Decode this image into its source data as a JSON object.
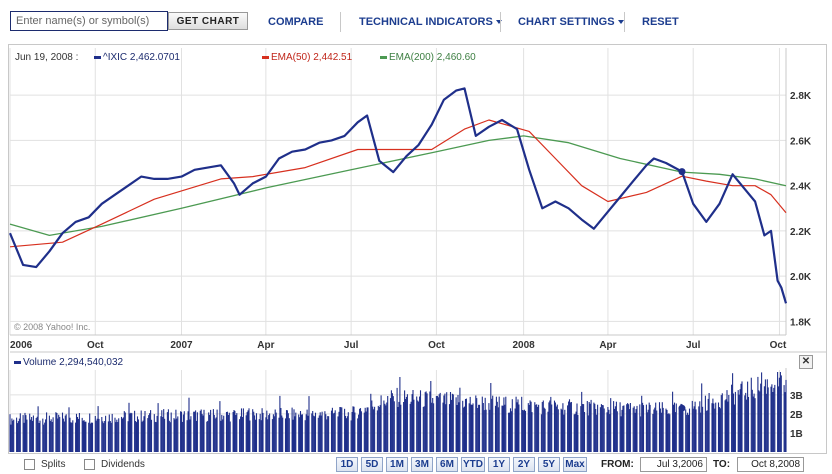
{
  "toolbar": {
    "symbol_placeholder": "Enter name(s) or symbol(s)",
    "get_chart_label": "GET CHART",
    "compare_label": "COMPARE",
    "technical_indicators_label": "TECHNICAL INDICATORS",
    "chart_settings_label": "CHART SETTINGS",
    "reset_label": "RESET"
  },
  "legend": {
    "date": "Jun 19, 2008 :",
    "symbol": "^IXIC",
    "symbol_value": "2,462.0701",
    "ema50_label": "EMA(50)",
    "ema50_value": "2,442.51",
    "ema200_label": "EMA(200)",
    "ema200_value": "2,460.60"
  },
  "colors": {
    "price": "#1f2f8a",
    "ema50": "#d7301f",
    "ema200": "#4c9a52",
    "volume": "#1f2f8a",
    "grid": "#e1e1e1"
  },
  "copyright": "© 2008 Yahoo! Inc.",
  "volume": {
    "label": "Volume",
    "value": "2,294,540,032",
    "close_icon": "close-icon"
  },
  "bottom": {
    "splits_label": "Splits",
    "dividends_label": "Dividends",
    "ranges": [
      "1D",
      "5D",
      "1M",
      "3M",
      "6M",
      "YTD",
      "1Y",
      "2Y",
      "5Y",
      "Max"
    ],
    "from_label": "FROM:",
    "from_value": "Jul 3,2006",
    "to_label": "TO:",
    "to_value": "Oct 8,2008"
  },
  "chart_data": [
    {
      "type": "line",
      "x_tick_labels": [
        "2006",
        "Oct",
        "2007",
        "Apr",
        "Jul",
        "Oct",
        "2008",
        "Apr",
        "Jul",
        "Oct"
      ],
      "x_tick_dates": [
        "2006-07-03",
        "2006-10-02",
        "2007-01-02",
        "2007-04-02",
        "2007-07-02",
        "2007-10-01",
        "2008-01-02",
        "2008-04-01",
        "2008-07-01",
        "2008-10-01"
      ],
      "x_range": [
        "2006-07-03",
        "2008-10-08"
      ],
      "y_tick_labels": [
        "1.8K",
        "2.0K",
        "2.2K",
        "2.4K",
        "2.6K",
        "2.8K"
      ],
      "y_ticks": [
        1800,
        2000,
        2200,
        2400,
        2600,
        2800
      ],
      "ylim": [
        1740,
        2920
      ],
      "grid": true,
      "series": [
        {
          "name": "^IXIC",
          "x": [
            "2006-07-03",
            "2006-07-17",
            "2006-07-31",
            "2006-08-14",
            "2006-08-28",
            "2006-09-11",
            "2006-09-25",
            "2006-10-09",
            "2006-10-23",
            "2006-11-06",
            "2006-11-20",
            "2006-12-04",
            "2006-12-18",
            "2007-01-02",
            "2007-01-16",
            "2007-01-30",
            "2007-02-13",
            "2007-02-27",
            "2007-03-05",
            "2007-03-19",
            "2007-04-02",
            "2007-04-16",
            "2007-04-30",
            "2007-05-14",
            "2007-05-29",
            "2007-06-11",
            "2007-06-25",
            "2007-07-09",
            "2007-07-19",
            "2007-08-01",
            "2007-08-16",
            "2007-08-30",
            "2007-09-12",
            "2007-09-26",
            "2007-10-09",
            "2007-10-22",
            "2007-10-31",
            "2007-11-12",
            "2007-11-26",
            "2007-12-10",
            "2007-12-26",
            "2008-01-08",
            "2008-01-22",
            "2008-02-05",
            "2008-02-19",
            "2008-03-04",
            "2008-03-17",
            "2008-03-31",
            "2008-04-14",
            "2008-04-28",
            "2008-05-12",
            "2008-05-20",
            "2008-06-02",
            "2008-06-19",
            "2008-07-01",
            "2008-07-15",
            "2008-07-29",
            "2008-08-12",
            "2008-08-26",
            "2008-09-05",
            "2008-09-15",
            "2008-09-22",
            "2008-09-29",
            "2008-10-03",
            "2008-10-08"
          ],
          "values": [
            2190,
            2050,
            2040,
            2110,
            2190,
            2240,
            2260,
            2320,
            2360,
            2400,
            2440,
            2430,
            2430,
            2440,
            2470,
            2480,
            2490,
            2410,
            2360,
            2410,
            2440,
            2520,
            2550,
            2560,
            2590,
            2600,
            2620,
            2680,
            2710,
            2510,
            2460,
            2530,
            2580,
            2670,
            2780,
            2820,
            2830,
            2620,
            2660,
            2690,
            2650,
            2470,
            2300,
            2330,
            2300,
            2250,
            2210,
            2280,
            2350,
            2420,
            2490,
            2520,
            2500,
            2462,
            2320,
            2240,
            2320,
            2450,
            2380,
            2330,
            2180,
            2200,
            1980,
            1950,
            1880
          ]
        },
        {
          "name": "EMA(50)",
          "x": [
            "2006-07-03",
            "2006-08-28",
            "2006-10-09",
            "2006-12-04",
            "2007-02-13",
            "2007-03-19",
            "2007-05-14",
            "2007-07-09",
            "2007-08-16",
            "2007-09-26",
            "2007-10-31",
            "2007-11-26",
            "2008-01-08",
            "2008-02-05",
            "2008-03-04",
            "2008-04-01",
            "2008-05-12",
            "2008-06-19",
            "2008-07-15",
            "2008-08-12",
            "2008-09-05",
            "2008-09-22",
            "2008-10-08"
          ],
          "values": [
            2130,
            2150,
            2230,
            2340,
            2430,
            2440,
            2480,
            2560,
            2560,
            2560,
            2650,
            2690,
            2640,
            2520,
            2400,
            2330,
            2370,
            2442,
            2420,
            2400,
            2400,
            2360,
            2280
          ]
        },
        {
          "name": "EMA(200)",
          "x": [
            "2006-07-03",
            "2006-08-14",
            "2006-10-09",
            "2007-01-02",
            "2007-04-02",
            "2007-07-02",
            "2007-10-01",
            "2007-11-26",
            "2008-01-02",
            "2008-02-19",
            "2008-04-14",
            "2008-06-19",
            "2008-07-29",
            "2008-09-05",
            "2008-10-08"
          ],
          "values": [
            2230,
            2180,
            2220,
            2300,
            2390,
            2470,
            2550,
            2600,
            2620,
            2590,
            2520,
            2460,
            2450,
            2430,
            2400
          ]
        }
      ]
    },
    {
      "type": "bar",
      "title": "Volume",
      "y_tick_labels": [
        "1B",
        "2B",
        "3B"
      ],
      "y_ticks": [
        1,
        2,
        3
      ],
      "ylim": [
        0,
        4.2
      ],
      "units": "billions of shares",
      "trend": {
        "x": [
          "2006-07-03",
          "2006-12-18",
          "2007-07-02",
          "2007-08-16",
          "2008-01-22",
          "2008-06-19",
          "2008-09-29",
          "2008-10-08"
        ],
        "values": [
          1.8,
          2.0,
          2.1,
          3.0,
          2.5,
          2.3,
          3.9,
          3.6
        ]
      }
    }
  ]
}
